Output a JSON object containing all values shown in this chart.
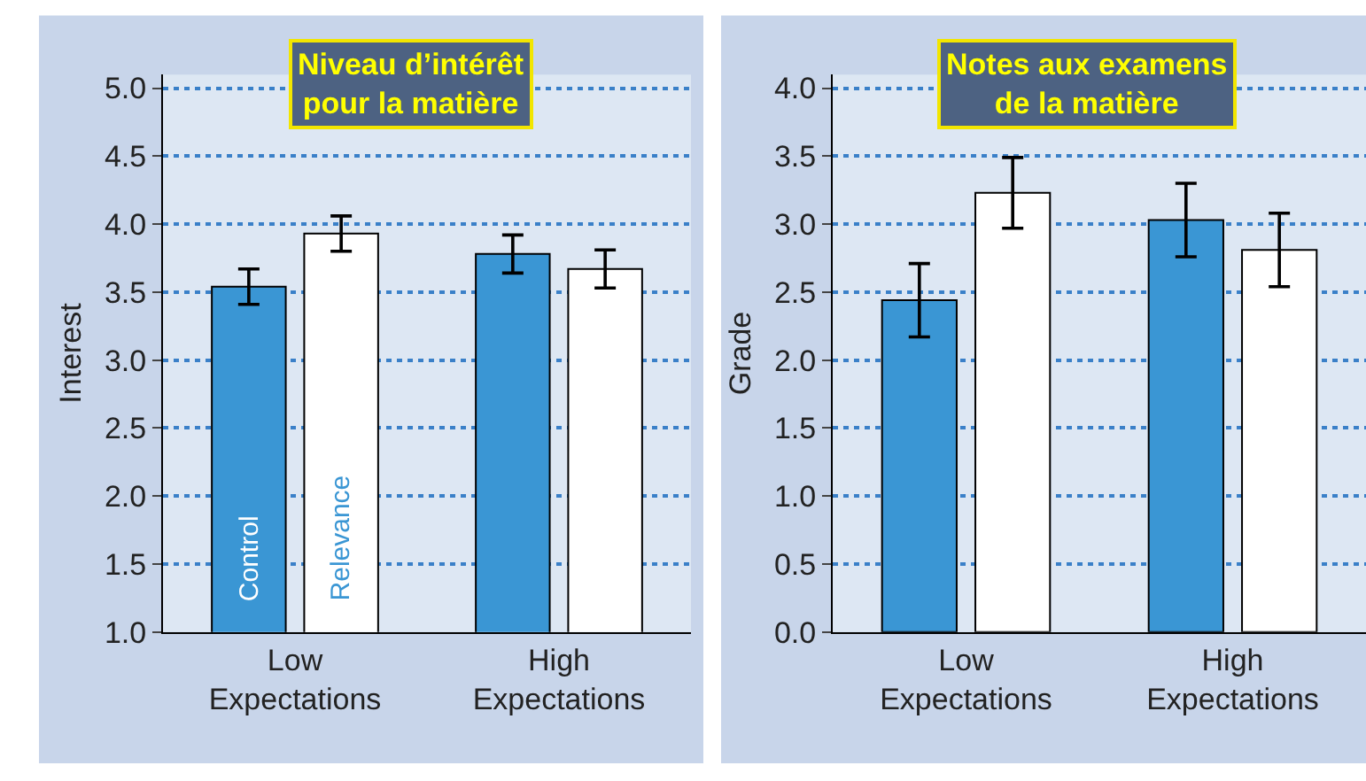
{
  "chart_data": [
    {
      "type": "bar",
      "title": "Niveau d’intérêt\npour la matière",
      "ylabel": "Interest",
      "categories": [
        "Low\nExpectations",
        "High\nExpectations"
      ],
      "series": [
        {
          "name": "Control",
          "color": "#3a96d4",
          "values": [
            3.54,
            3.78
          ],
          "errors": [
            0.13,
            0.14
          ]
        },
        {
          "name": "Relevance",
          "color": "#ffffff",
          "values": [
            3.93,
            3.67
          ],
          "errors": [
            0.13,
            0.14
          ]
        }
      ],
      "ylim": [
        1.0,
        5.1
      ],
      "yticks": [
        {
          "value": 1,
          "label": "1.0"
        },
        {
          "value": 1.5,
          "label": "1.5"
        },
        {
          "value": 2,
          "label": "2.0"
        },
        {
          "value": 2.5,
          "label": "2.5"
        },
        {
          "value": 3,
          "label": "3.0"
        },
        {
          "value": 3.5,
          "label": "3.5"
        },
        {
          "value": 4,
          "label": "4.0"
        },
        {
          "value": 4.5,
          "label": "4.5"
        },
        {
          "value": 5,
          "label": "5.0"
        }
      ],
      "grid": "y"
    },
    {
      "type": "bar",
      "title": "Notes aux examens\nde la matière",
      "ylabel": "Grade",
      "categories": [
        "Low\nExpectations",
        "High\nExpectations"
      ],
      "series": [
        {
          "color": "#3a96d4",
          "values": [
            2.44,
            3.03
          ],
          "errors": [
            0.27,
            0.27
          ]
        },
        {
          "color": "#ffffff",
          "values": [
            3.23,
            2.81
          ],
          "errors": [
            0.26,
            0.27
          ]
        }
      ],
      "ylim": [
        0.0,
        4.1
      ],
      "yticks": [
        {
          "value": 0,
          "label": "0.0"
        },
        {
          "value": 0.5,
          "label": "0.5"
        },
        {
          "value": 1,
          "label": "1.0"
        },
        {
          "value": 1.5,
          "label": "1.5"
        },
        {
          "value": 2,
          "label": "2.0"
        },
        {
          "value": 2.5,
          "label": "2.5"
        },
        {
          "value": 3,
          "label": "3.0"
        },
        {
          "value": 3.5,
          "label": "3.5"
        },
        {
          "value": 4,
          "label": "4.0"
        }
      ],
      "grid": "y"
    }
  ]
}
